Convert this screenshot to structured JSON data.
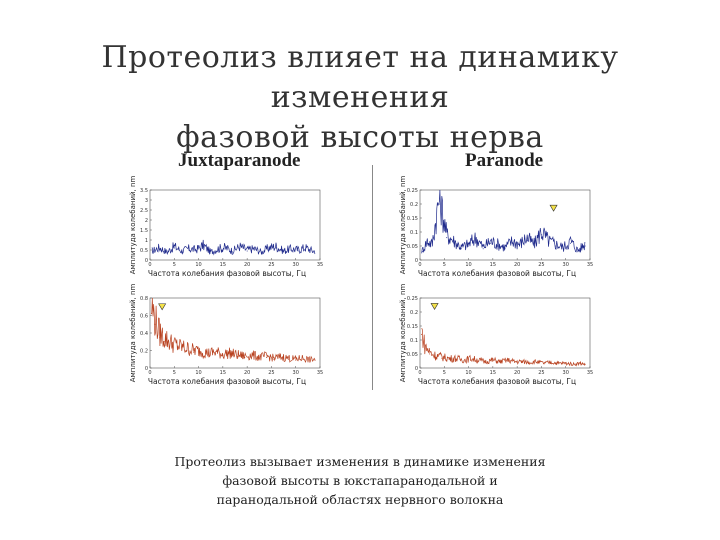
{
  "slide": {
    "title_line1": "Протеолиз влияет на динамику изменения",
    "title_line2": "фазовой высоты нерва",
    "col_left_title": "Juxtaparanode",
    "col_right_title": "Paranode",
    "caption_line1": "Протеолиз вызывает изменения в динамике изменения",
    "caption_line2": "фазовой высоты в юкстапаранодальной и",
    "caption_line3": "паранодальной областях нервного волокна"
  },
  "chart_data": [
    {
      "type": "line",
      "panel": "juxtaparanode-top",
      "ylabel": "Амплитуда колебаний, nm",
      "xlabel": "Частота колебания фазовой высоты, Гц",
      "color": "#1f2a8c",
      "xlim": [
        0,
        35
      ],
      "ylim": [
        0,
        3.5
      ],
      "xticks": [
        0,
        5,
        10,
        15,
        20,
        25,
        30,
        35
      ],
      "yticks": [
        0,
        0.5,
        1,
        1.5,
        2,
        2.5,
        3,
        3.5
      ],
      "marker": null,
      "series": [
        {
          "x": [
            0.5,
            2,
            3.5,
            5,
            6.5,
            8,
            9.5,
            11,
            12.5,
            14,
            15.5,
            17,
            18.5,
            20,
            21.5,
            23,
            24.5,
            26,
            27.5,
            29,
            30.5,
            32,
            33.5
          ],
          "y": [
            0.4,
            0.55,
            0.35,
            0.6,
            0.4,
            0.5,
            0.45,
            0.65,
            0.35,
            0.5,
            0.55,
            0.4,
            0.6,
            0.45,
            0.5,
            0.35,
            0.55,
            0.6,
            0.4,
            0.5,
            0.45,
            0.55,
            0.4
          ]
        }
      ]
    },
    {
      "type": "line",
      "panel": "paranode-top",
      "ylabel": "Амплитуда колебаний, nm",
      "xlabel": "Частота колебания фазовой высоты, Гц",
      "color": "#1f2a8c",
      "xlim": [
        0,
        35
      ],
      "ylim": [
        0,
        0.25
      ],
      "xticks": [
        0,
        5,
        10,
        15,
        20,
        25,
        30,
        35
      ],
      "yticks": [
        0,
        0.05,
        0.1,
        0.15,
        0.2,
        0.25
      ],
      "marker": {
        "x": 27.5,
        "y": 0.185
      },
      "series": [
        {
          "x": [
            0.5,
            1.5,
            2.5,
            4,
            5.5,
            7,
            8.5,
            10,
            11.5,
            13,
            14.5,
            16,
            17.5,
            19,
            20.5,
            22,
            23.5,
            25,
            26.5,
            28,
            29.5,
            31,
            32.5,
            34
          ],
          "y": [
            0.03,
            0.06,
            0.05,
            0.2,
            0.08,
            0.06,
            0.04,
            0.05,
            0.07,
            0.04,
            0.06,
            0.05,
            0.04,
            0.06,
            0.05,
            0.07,
            0.05,
            0.09,
            0.06,
            0.05,
            0.04,
            0.06,
            0.03,
            0.05
          ]
        }
      ]
    },
    {
      "type": "line",
      "panel": "juxtaparanode-bottom",
      "ylabel": "Амплитуда колебаний, nm",
      "xlabel": "Частота колебания фазовой высоты, Гц",
      "color": "#b8401e",
      "xlim": [
        0,
        35
      ],
      "ylim": [
        0,
        0.8
      ],
      "xticks": [
        0,
        5,
        10,
        15,
        20,
        25,
        30,
        35
      ],
      "yticks": [
        0,
        0.2,
        0.4,
        0.6,
        0.8
      ],
      "marker": {
        "x": 2.5,
        "y": 0.7
      },
      "series": [
        {
          "x": [
            0.3,
            1,
            2,
            3,
            4.5,
            6,
            7.5,
            9,
            10.5,
            12,
            13.5,
            15,
            16.5,
            18,
            19.5,
            21,
            22.5,
            24,
            25.5,
            27,
            28.5,
            30,
            31.5,
            33,
            34
          ],
          "y": [
            0.62,
            0.5,
            0.35,
            0.3,
            0.25,
            0.22,
            0.2,
            0.18,
            0.17,
            0.15,
            0.16,
            0.14,
            0.15,
            0.13,
            0.12,
            0.13,
            0.11,
            0.12,
            0.1,
            0.11,
            0.1,
            0.09,
            0.1,
            0.08,
            0.09
          ]
        }
      ]
    },
    {
      "type": "line",
      "panel": "paranode-bottom",
      "ylabel": "Амплитуда колебаний, nm",
      "xlabel": "Частота колебания фазовой высоты, Гц",
      "color": "#b8401e",
      "xlim": [
        0,
        35
      ],
      "ylim": [
        0,
        0.25
      ],
      "xticks": [
        0,
        5,
        10,
        15,
        20,
        25,
        30,
        35
      ],
      "yticks": [
        0,
        0.05,
        0.1,
        0.15,
        0.2,
        0.25
      ],
      "marker": {
        "x": 3,
        "y": 0.22
      },
      "series": [
        {
          "x": [
            0.3,
            1,
            2,
            3,
            4.5,
            6,
            7.5,
            9,
            10.5,
            12,
            13.5,
            15,
            16.5,
            18,
            19.5,
            21,
            22.5,
            24,
            25.5,
            27,
            28.5,
            30,
            31.5,
            33,
            34
          ],
          "y": [
            0.12,
            0.07,
            0.05,
            0.04,
            0.035,
            0.03,
            0.03,
            0.025,
            0.03,
            0.025,
            0.02,
            0.025,
            0.02,
            0.025,
            0.02,
            0.02,
            0.018,
            0.02,
            0.015,
            0.018,
            0.015,
            0.015,
            0.012,
            0.015,
            0.012
          ]
        }
      ]
    }
  ]
}
